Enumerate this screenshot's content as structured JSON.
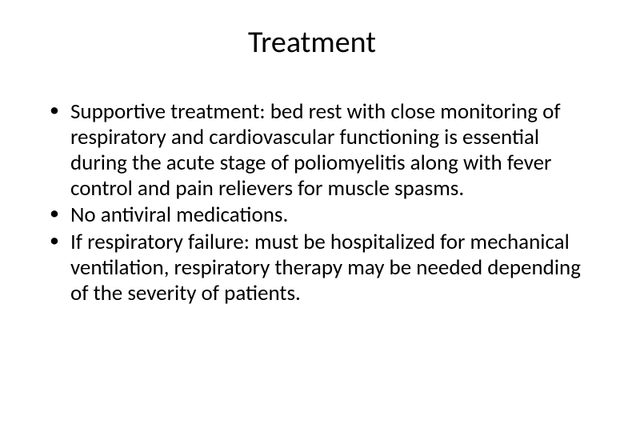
{
  "slide": {
    "title": "Treatment",
    "title_fontsize": 38,
    "body_fontsize": 27,
    "text_color": "#000000",
    "background_color": "#ffffff",
    "bullets": [
      "Supportive treatment: bed rest with close monitoring of respiratory and cardiovascular functioning is essential during the acute stage of poliomyelitis along with fever control and pain relievers for muscle spasms.",
      "No antiviral medications.",
      "If respiratory failure: must be hospitalized for mechanical ventilation, respiratory therapy may be needed depending of the severity of patients."
    ]
  }
}
